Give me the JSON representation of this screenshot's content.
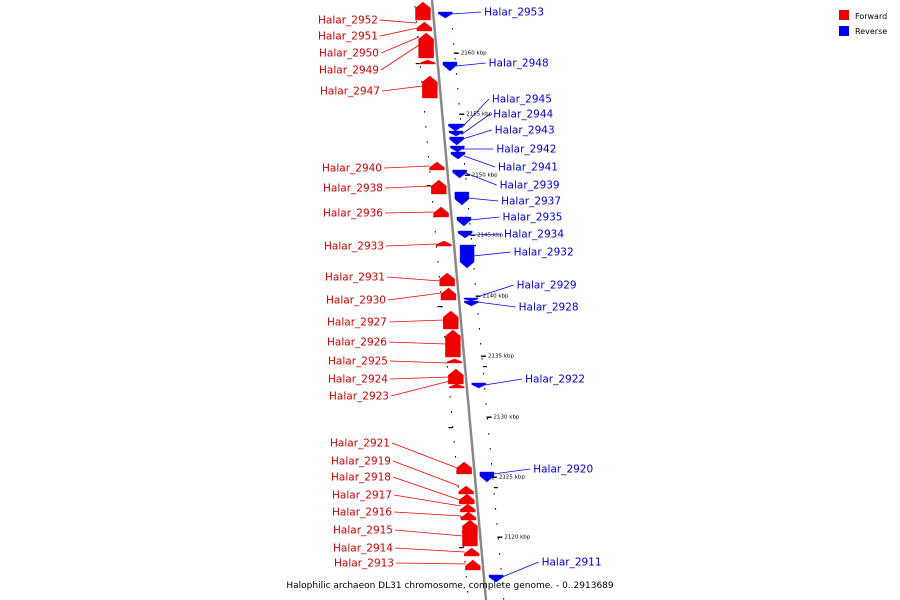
{
  "caption": "Halophilic archaeon DL31 chromosome, complete genome. - 0..2913689",
  "colors": {
    "forward": "#ee0000",
    "reverse": "#0000ee",
    "backbone": "#888888",
    "tick": "#000000"
  },
  "legend": [
    {
      "label": "Forward",
      "color": "#ee0000"
    },
    {
      "label": "Reverse",
      "color": "#0000ee"
    }
  ],
  "ticks": [
    "2160 kbp",
    "2155 kbp",
    "2150 kbp",
    "2145 kbp",
    "2140 kbp",
    "2135 kbp",
    "2130 kbp",
    "2125 kbp",
    "2120 kbp"
  ],
  "forward_genes": [
    "Halar_2952",
    "Halar_2951",
    "Halar_2950",
    "Halar_2949",
    "Halar_2947",
    "Halar_2940",
    "Halar_2938",
    "Halar_2936",
    "Halar_2933",
    "Halar_2931",
    "Halar_2930",
    "Halar_2927",
    "Halar_2926",
    "Halar_2925",
    "Halar_2924",
    "Halar_2923",
    "Halar_2921",
    "Halar_2919",
    "Halar_2918",
    "Halar_2917",
    "Halar_2916",
    "Halar_2915",
    "Halar_2914",
    "Halar_2913"
  ],
  "reverse_genes": [
    "Halar_2953",
    "Halar_2948",
    "Halar_2945",
    "Halar_2944",
    "Halar_2943",
    "Halar_2942",
    "Halar_2941",
    "Halar_2939",
    "Halar_2937",
    "Halar_2935",
    "Halar_2934",
    "Halar_2932",
    "Halar_2929",
    "Halar_2928",
    "Halar_2922",
    "Halar_2920",
    "Halar_2911"
  ]
}
